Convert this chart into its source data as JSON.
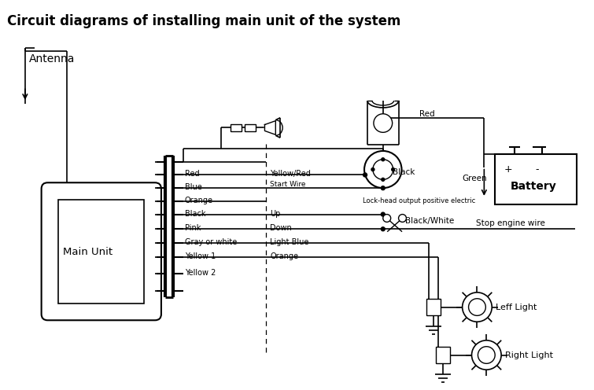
{
  "title": "Circuit diagrams of installing main unit of the system",
  "bg": "#ffffff",
  "lc": "#000000",
  "lw": 1.2,
  "labels": {
    "antenna": "Antenna",
    "main_unit": "Main Unit",
    "red_left": "Red",
    "blue_l": "Blue",
    "orange_l": "Orange",
    "black_l": "Black",
    "pink_l": "Pink",
    "gray_l": "Gray or white",
    "yellow1_l": "Yellow 1",
    "yellow2_l": "Yellow 2",
    "yellow_red": "Yellow/Red",
    "start_wire": "Start Wire",
    "up_l": "Up",
    "down_l": "Down",
    "light_blue": "Light Blue",
    "orange2": "Orange",
    "black_l2": "Black",
    "green_l": "Green",
    "battery": "Battery",
    "lock_head": "Lock-head output positive electric",
    "red_r": "Red",
    "black_white": "Black/White",
    "stop_engine": "Stop engine wire",
    "left_light": "Leff Light",
    "right_light": "Right Light"
  }
}
